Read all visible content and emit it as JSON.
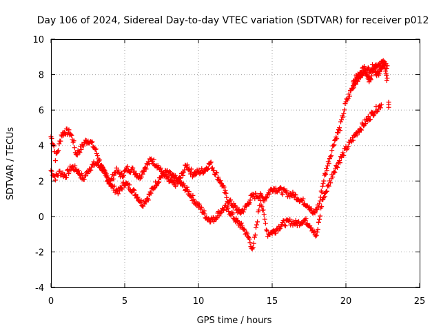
{
  "chart_data": {
    "type": "scatter",
    "title": "Day 106 of 2024, Sidereal Day-to-day VTEC variation (SDTVAR) for receiver p012",
    "xlabel": "GPS time / hours",
    "ylabel": "SDTVAR / TECUs",
    "xlim": [
      0,
      25
    ],
    "ylim": [
      -4,
      10
    ],
    "x_ticks": [
      "0",
      "5",
      "10",
      "15",
      "20",
      "25"
    ],
    "y_ticks": [
      "-4",
      "-2",
      "0",
      "2",
      "4",
      "6",
      "8",
      "10"
    ],
    "grid": true,
    "marker": "+",
    "series_color": "#ff0000",
    "series": [
      {
        "name": "SDTVAR",
        "trace_a": {
          "x": [
            0.0,
            0.2,
            0.3,
            0.5,
            0.7,
            1.0,
            1.3,
            1.5,
            1.7,
            2.0,
            2.3,
            2.6,
            3.0,
            3.3,
            3.6,
            4.0,
            4.4,
            4.8,
            5.2,
            5.6,
            6.0,
            6.4,
            6.8,
            7.2,
            7.6,
            8.0,
            8.4,
            8.8,
            9.2,
            9.6,
            10.0,
            10.4,
            10.8,
            11.2,
            11.6,
            12.0,
            12.4,
            12.8,
            13.2,
            13.6,
            14.0,
            14.5,
            15.0,
            15.5,
            16.0,
            16.5,
            17.0,
            17.5,
            17.8,
            18.2,
            18.5,
            18.8,
            19.2,
            19.6,
            20.0,
            20.4,
            20.8,
            21.2,
            21.6,
            22.0,
            22.4,
            22.8
          ],
          "y": [
            4.5,
            4.0,
            3.3,
            3.8,
            4.6,
            4.8,
            4.7,
            4.3,
            3.5,
            3.8,
            4.2,
            4.3,
            3.8,
            3.1,
            2.4,
            1.9,
            2.6,
            2.3,
            2.7,
            2.6,
            2.2,
            2.8,
            3.2,
            2.9,
            2.4,
            2.0,
            1.8,
            2.2,
            2.9,
            2.4,
            2.5,
            2.6,
            3.0,
            2.4,
            1.8,
            0.9,
            0.6,
            0.2,
            0.5,
            1.1,
            1.2,
            1.0,
            1.6,
            1.5,
            1.3,
            1.2,
            0.9,
            0.6,
            0.1,
            0.7,
            2.1,
            3.0,
            4.2,
            5.0,
            6.4,
            7.2,
            7.8,
            8.1,
            8.3,
            8.5,
            8.7,
            8.5
          ]
        },
        "trace_b": {
          "x": [
            0.0,
            0.3,
            0.6,
            1.0,
            1.4,
            1.8,
            2.2,
            2.6,
            3.0,
            3.4,
            3.8,
            4.2,
            4.6,
            5.0,
            5.4,
            5.8,
            6.2,
            6.6,
            7.0,
            7.4,
            7.8,
            8.2,
            8.6,
            9.0,
            9.4,
            9.8,
            10.2,
            10.6,
            11.0,
            11.4,
            11.8,
            12.2,
            12.6,
            13.0,
            13.4,
            13.7,
            14.2,
            14.7,
            15.2,
            15.7,
            16.2,
            16.7,
            17.2,
            17.6,
            18.0,
            18.4,
            18.8,
            19.2,
            19.6,
            20.0,
            20.4,
            20.8,
            21.2,
            21.6,
            22.0,
            22.4
          ],
          "y": [
            2.6,
            2.2,
            2.5,
            2.3,
            2.8,
            2.6,
            2.1,
            2.7,
            3.0,
            2.8,
            2.2,
            1.6,
            1.4,
            1.9,
            1.6,
            1.2,
            0.7,
            1.1,
            1.7,
            2.2,
            2.5,
            2.3,
            2.0,
            1.7,
            1.3,
            0.8,
            0.4,
            -0.1,
            -0.2,
            0.2,
            0.5,
            0.2,
            -0.3,
            -0.6,
            -1.2,
            -1.9,
            1.0,
            -1.0,
            -0.8,
            -0.4,
            -0.3,
            -0.4,
            -0.2,
            -0.5,
            -1.2,
            0.9,
            1.7,
            2.6,
            3.2,
            3.8,
            4.3,
            4.8,
            5.2,
            5.6,
            6.0,
            6.3
          ]
        },
        "cluster": {
          "x": [
            20.5,
            20.9,
            21.3,
            21.6,
            21.9,
            22.2,
            22.5,
            22.8
          ],
          "y": [
            7.6,
            8.0,
            8.3,
            7.7,
            8.4,
            8.0,
            8.6,
            7.8
          ]
        },
        "outlier": {
          "x": [
            22.9
          ],
          "y": [
            6.3
          ]
        }
      }
    ]
  }
}
